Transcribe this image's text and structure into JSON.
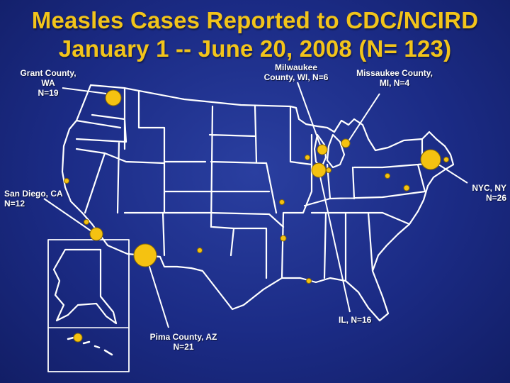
{
  "title": {
    "line1": "Measles Cases Reported to CDC/NCIRD",
    "line2": "January 1 -- June 20, 2008 (N= 123)"
  },
  "colors": {
    "background": "#1b2b85",
    "title": "#f2c41a",
    "marker": "#f5c211",
    "state_borders": "#ffffff"
  },
  "callouts": {
    "grant_county": {
      "line1": "Grant County,",
      "line2": "WA",
      "line3": "N=19"
    },
    "milwaukee": {
      "line1": "Milwaukee",
      "line2": "County, WI, N=6"
    },
    "missaukee": {
      "line1": "Missaukee County,",
      "line2": "MI, N=4"
    },
    "nyc": {
      "line1": "NYC, NY",
      "line2": "N=26"
    },
    "san_diego": {
      "line1": "San Diego, CA",
      "line2": "N=12"
    },
    "pima": {
      "line1": "Pima County, AZ",
      "line2": "N=21"
    },
    "illinois": {
      "line1": "IL, N=16"
    }
  }
}
